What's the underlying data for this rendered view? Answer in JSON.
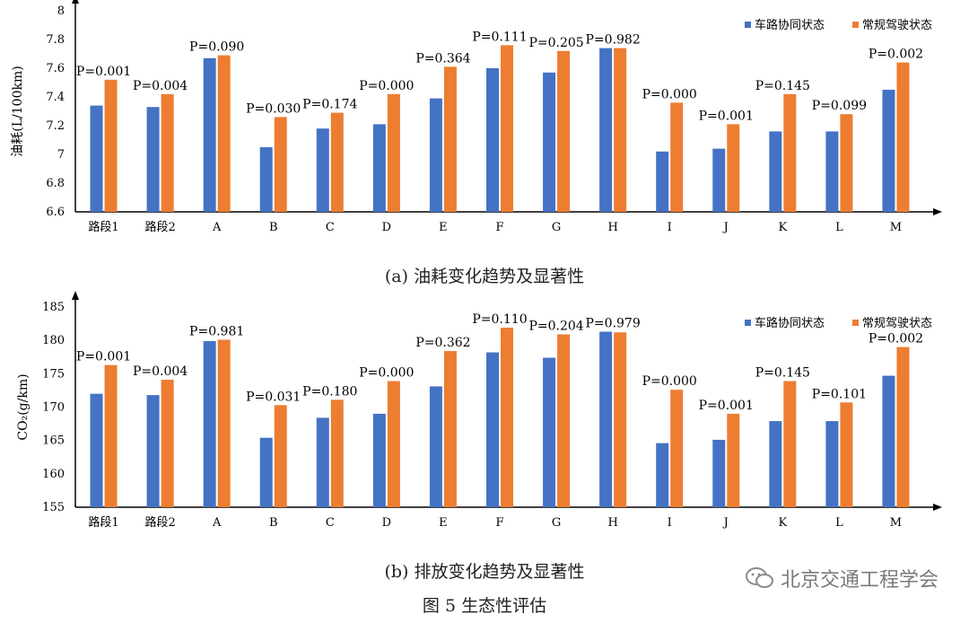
{
  "colors": {
    "blue": "#4472C4",
    "orange": "#ED7D31",
    "axis": "#000000"
  },
  "captions": {
    "a": "(a)  油耗变化趋势及显著性",
    "b": "(b)  排放变化趋势及显著性",
    "figure": "图 5  生态性评估"
  },
  "watermark": {
    "text": "北京交通工程学会",
    "icon": "wechat-icon"
  },
  "chart_data": [
    {
      "type": "bar",
      "ylabel": "油耗(L/100km)",
      "xlabel": "",
      "ylim": [
        6.6,
        8
      ],
      "yticks": [
        "6.6",
        "6.8",
        "7",
        "7.2",
        "7.4",
        "7.6",
        "7.8",
        "8"
      ],
      "legend_position": "top-right",
      "categories": [
        "路段1",
        "路段2",
        "A",
        "B",
        "C",
        "D",
        "E",
        "F",
        "G",
        "H",
        "I",
        "J",
        "K",
        "L",
        "M"
      ],
      "series": [
        {
          "name": "车路协同状态",
          "values": [
            7.34,
            7.33,
            7.67,
            7.05,
            7.18,
            7.21,
            7.39,
            7.6,
            7.57,
            7.74,
            7.02,
            7.04,
            7.16,
            7.16,
            7.45
          ]
        },
        {
          "name": "常规驾驶状态",
          "values": [
            7.52,
            7.42,
            7.69,
            7.26,
            7.29,
            7.42,
            7.61,
            7.76,
            7.72,
            7.74,
            7.36,
            7.21,
            7.42,
            7.28,
            7.64
          ]
        }
      ],
      "annotations": [
        "P=0.001",
        "P=0.004",
        "P=0.090",
        "P=0.030",
        "P=0.174",
        "P=0.000",
        "P=0.364",
        "P=0.111",
        "P=0.205",
        "P=0.982",
        "P=0.000",
        "P=0.001",
        "P=0.145",
        "P=0.099",
        "P=0.002"
      ]
    },
    {
      "type": "bar",
      "ylabel": "CO₂(g/km)",
      "xlabel": "",
      "ylim": [
        155,
        185
      ],
      "yticks": [
        "155",
        "160",
        "165",
        "170",
        "175",
        "180",
        "185"
      ],
      "legend_position": "top-right",
      "categories": [
        "路段1",
        "路段2",
        "A",
        "B",
        "C",
        "D",
        "E",
        "F",
        "G",
        "H",
        "I",
        "J",
        "K",
        "L",
        "M"
      ],
      "series": [
        {
          "name": "车路协同状态",
          "values": [
            172.0,
            171.8,
            179.9,
            165.4,
            168.4,
            169.0,
            173.1,
            178.2,
            177.4,
            181.3,
            164.6,
            165.1,
            167.9,
            167.9,
            174.7
          ]
        },
        {
          "name": "常规驾驶状态",
          "values": [
            176.3,
            174.1,
            180.1,
            170.3,
            171.1,
            173.9,
            178.4,
            181.9,
            180.9,
            181.2,
            172.6,
            169.0,
            173.9,
            170.7,
            179.0
          ]
        }
      ],
      "annotations": [
        "P=0.001",
        "P=0.004",
        "P=0.981",
        "P=0.031",
        "P=0.180",
        "P=0.000",
        "P=0.362",
        "P=0.110",
        "P=0.204",
        "P=0.979",
        "P=0.000",
        "P=0.001",
        "P=0.145",
        "P=0.101",
        "P=0.002"
      ]
    }
  ]
}
